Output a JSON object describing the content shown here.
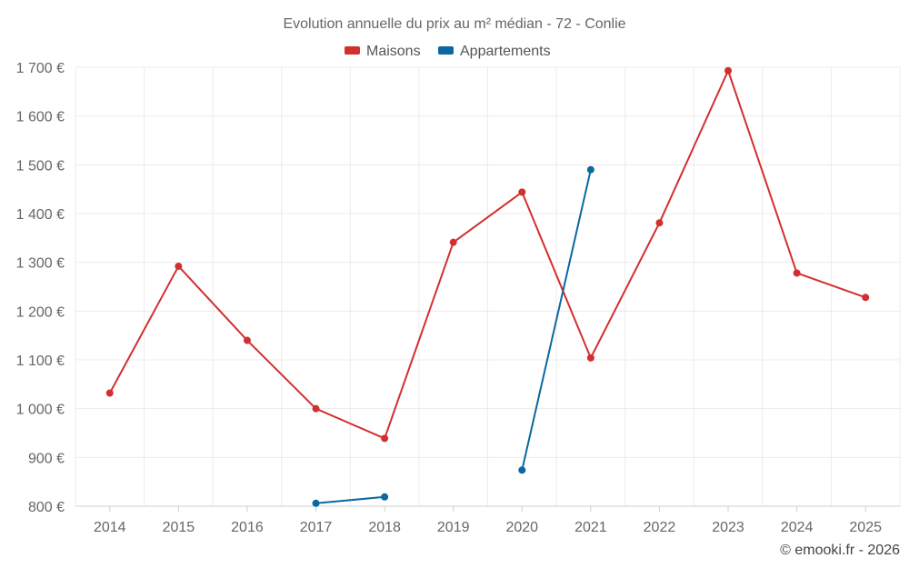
{
  "chart_data": {
    "type": "line",
    "title": "Evolution annuelle du prix au m² médian - 72 - Conlie",
    "categories": [
      "2014",
      "2015",
      "2016",
      "2017",
      "2018",
      "2019",
      "2020",
      "2021",
      "2022",
      "2023",
      "2024",
      "2025"
    ],
    "series": [
      {
        "name": "Maisons",
        "color": "#d32f2f",
        "values": [
          1032,
          1292,
          1140,
          1000,
          939,
          1341,
          1444,
          1104,
          1381,
          1693,
          1278,
          1228
        ]
      },
      {
        "name": "Appartements",
        "color": "#0b68a0",
        "values": [
          null,
          null,
          null,
          806,
          819,
          null,
          874,
          1490,
          null,
          null,
          null,
          null
        ]
      }
    ],
    "y_ticks": [
      800,
      900,
      1000,
      1100,
      1200,
      1300,
      1400,
      1500,
      1600,
      1700
    ],
    "y_tick_labels": [
      "800 €",
      "900 €",
      "1 000 €",
      "1 100 €",
      "1 200 €",
      "1 300 €",
      "1 400 €",
      "1 500 €",
      "1 600 €",
      "1 700 €"
    ],
    "ylim": [
      800,
      1700
    ],
    "xlabel": "",
    "ylabel": "",
    "grid": true,
    "legend_position": "top-center"
  },
  "credit": "© emooki.fr - 2026"
}
